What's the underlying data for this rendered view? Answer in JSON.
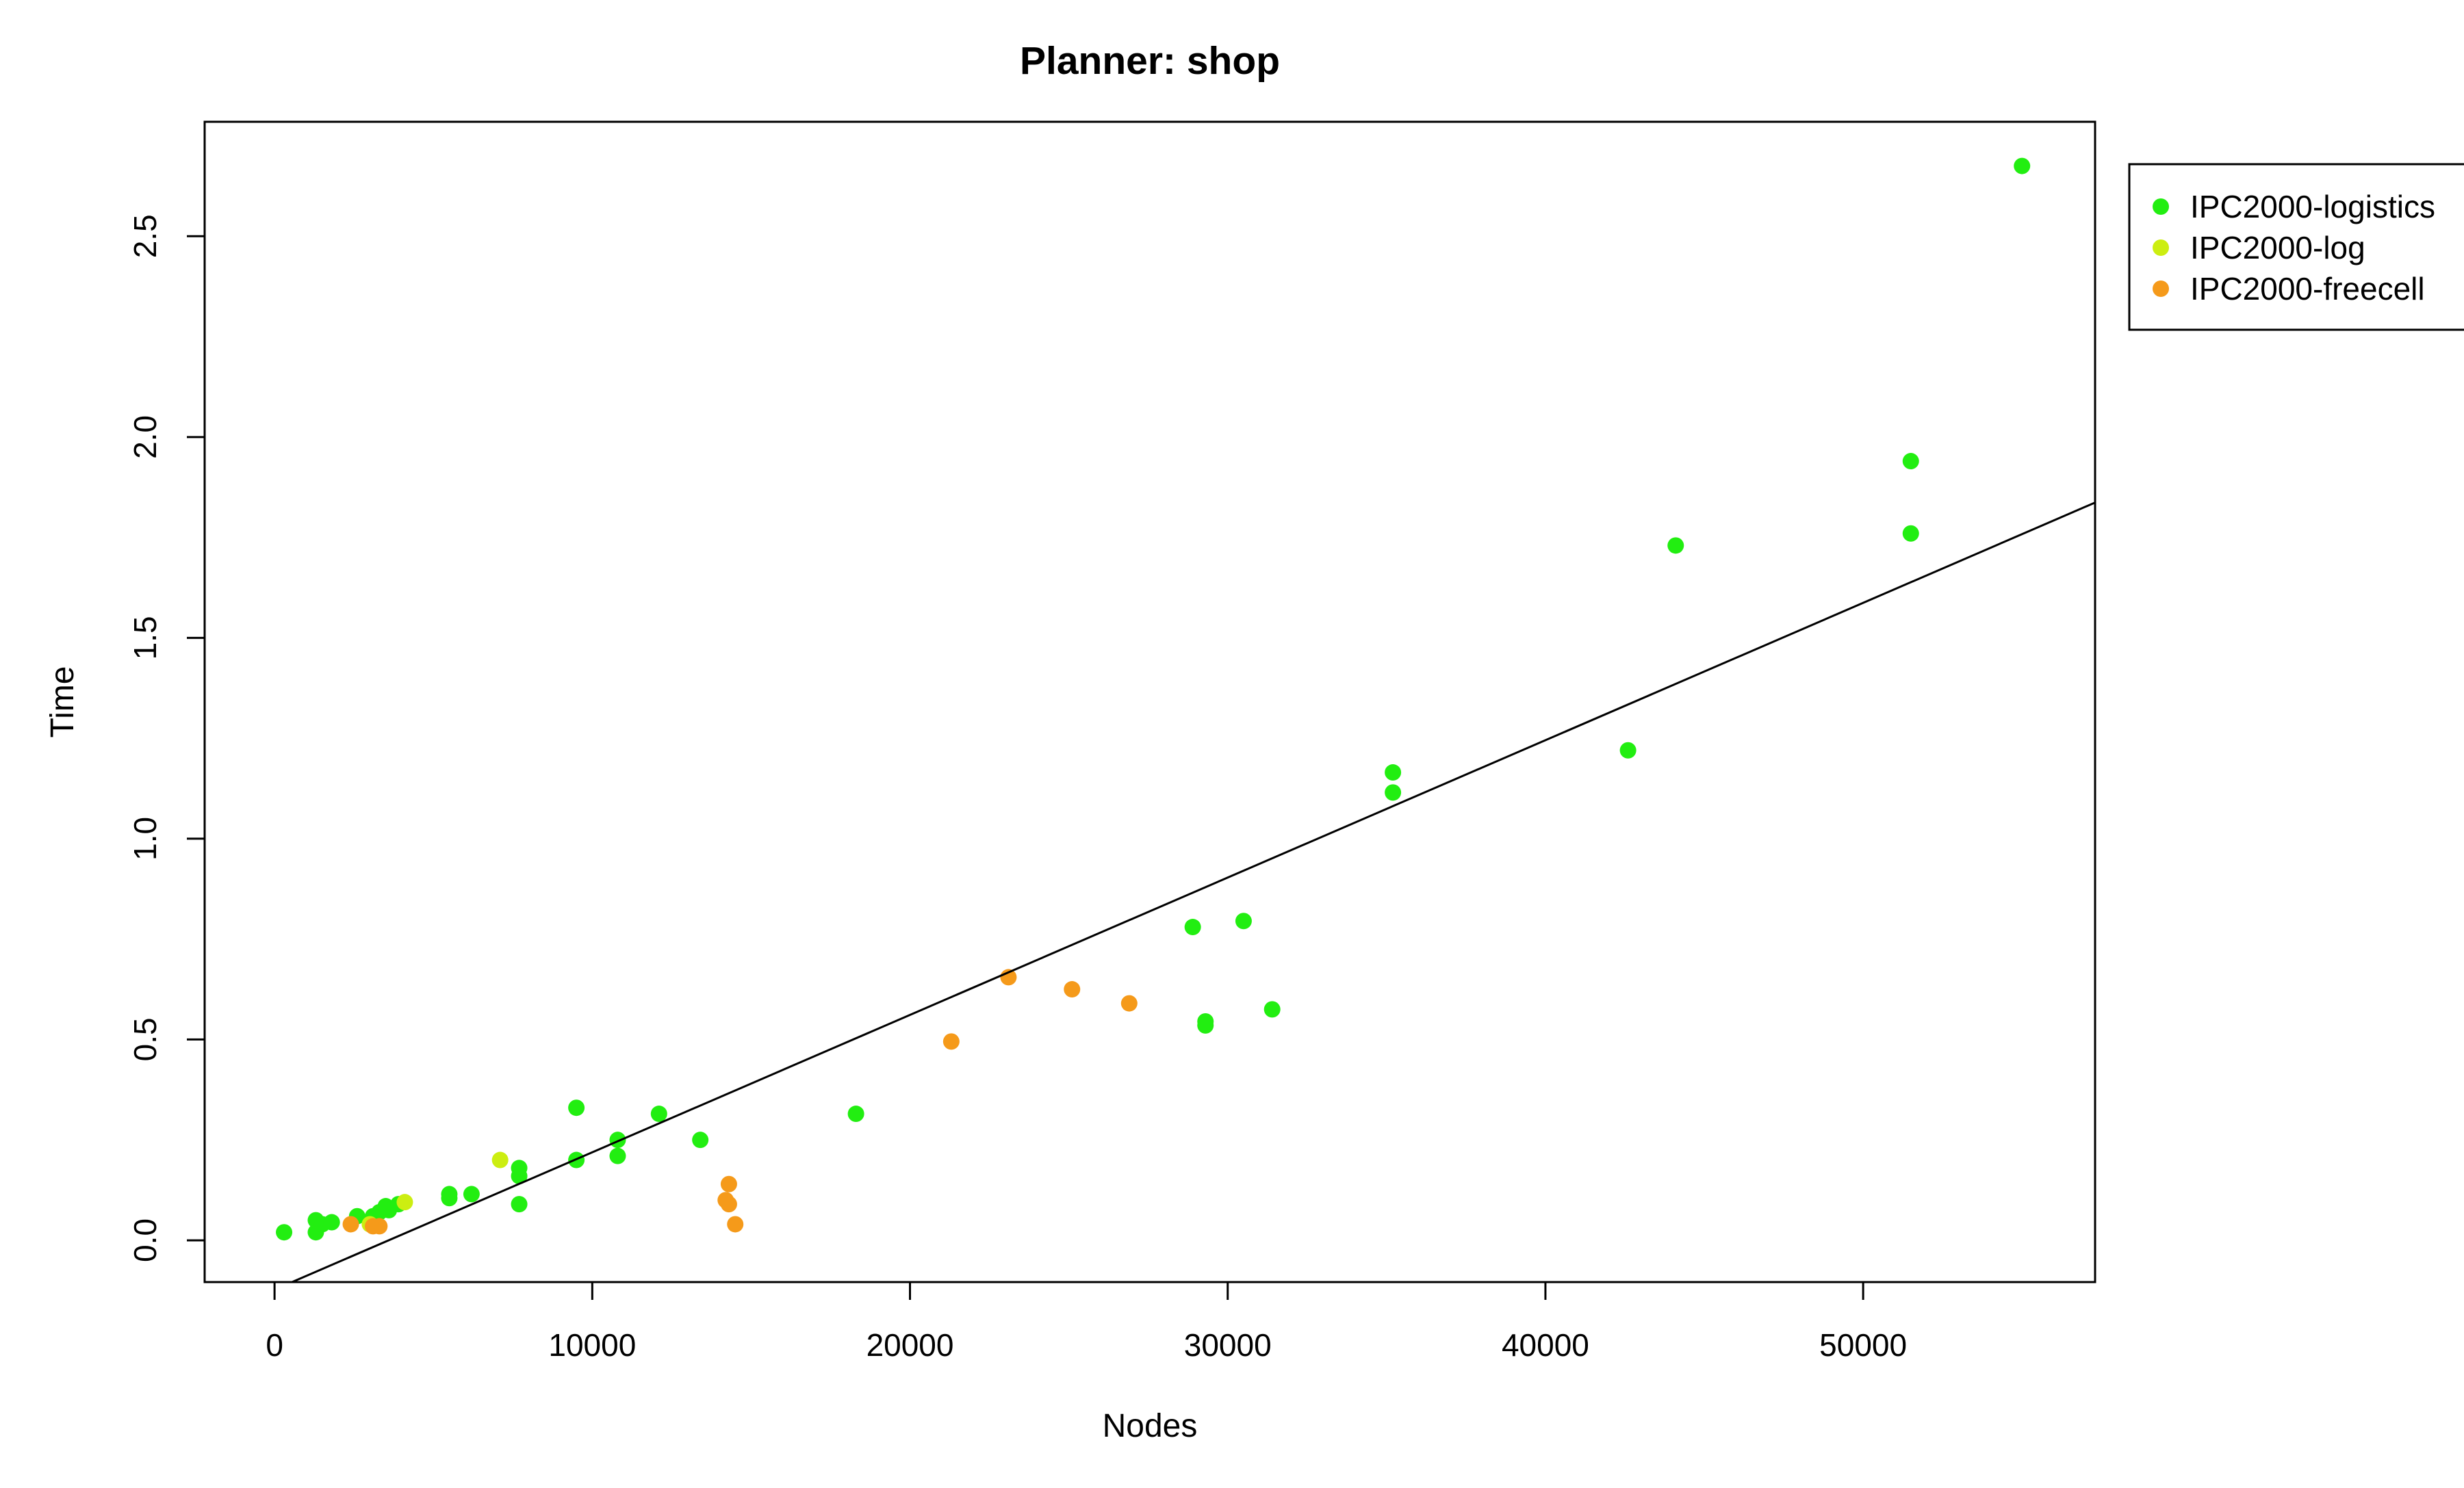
{
  "chart_data": {
    "type": "scatter",
    "title": "Planner: shop",
    "xlabel": "Nodes",
    "ylabel": "Time",
    "xlim": [
      -2200,
      57300
    ],
    "ylim": [
      -0.104,
      2.785
    ],
    "x_ticks": [
      0,
      10000,
      20000,
      30000,
      40000,
      50000
    ],
    "x_tick_labels": [
      "0",
      "10000",
      "20000",
      "30000",
      "40000",
      "50000"
    ],
    "y_ticks": [
      0.0,
      0.5,
      1.0,
      1.5,
      2.0,
      2.5
    ],
    "y_tick_labels": [
      "0.0",
      "0.5",
      "1.0",
      "1.5",
      "2.0",
      "2.5"
    ],
    "grid": false,
    "legend_position": "outside-top-right",
    "series": [
      {
        "name": "IPC2000-logistics",
        "color": "#22ee11",
        "points": [
          [
            300,
            0.02
          ],
          [
            1300,
            0.02
          ],
          [
            1300,
            0.05
          ],
          [
            1500,
            0.04
          ],
          [
            1800,
            0.045
          ],
          [
            2600,
            0.06
          ],
          [
            3100,
            0.06
          ],
          [
            3300,
            0.07
          ],
          [
            3500,
            0.085
          ],
          [
            3600,
            0.075
          ],
          [
            3900,
            0.09
          ],
          [
            5500,
            0.115
          ],
          [
            5500,
            0.105
          ],
          [
            6200,
            0.115
          ],
          [
            7700,
            0.18
          ],
          [
            7700,
            0.16
          ],
          [
            7700,
            0.09
          ],
          [
            9500,
            0.33
          ],
          [
            9500,
            0.2
          ],
          [
            10800,
            0.25
          ],
          [
            10800,
            0.21
          ],
          [
            12100,
            0.315
          ],
          [
            13400,
            0.25
          ],
          [
            18300,
            0.315
          ],
          [
            28900,
            0.78
          ],
          [
            29300,
            0.545
          ],
          [
            29300,
            0.535
          ],
          [
            30500,
            0.795
          ],
          [
            31400,
            0.575
          ],
          [
            35200,
            1.165
          ],
          [
            35200,
            1.115
          ],
          [
            42600,
            1.22
          ],
          [
            44100,
            1.73
          ],
          [
            51500,
            1.94
          ],
          [
            51500,
            1.76
          ],
          [
            55000,
            2.675
          ]
        ]
      },
      {
        "name": "IPC2000-log",
        "color": "#ccee11",
        "points": [
          [
            3000,
            0.04
          ],
          [
            4100,
            0.095
          ],
          [
            7100,
            0.2
          ]
        ]
      },
      {
        "name": "IPC2000-freecell",
        "color": "#f59a1a",
        "points": [
          [
            2400,
            0.04
          ],
          [
            3100,
            0.035
          ],
          [
            3300,
            0.035
          ],
          [
            14200,
            0.1
          ],
          [
            14300,
            0.14
          ],
          [
            14300,
            0.09
          ],
          [
            14500,
            0.04
          ],
          [
            21300,
            0.495
          ],
          [
            23100,
            0.655
          ],
          [
            25100,
            0.625
          ],
          [
            26900,
            0.59
          ]
        ]
      }
    ],
    "trend_line": {
      "intercept": -0.1228,
      "slope": 3.42e-05
    }
  }
}
